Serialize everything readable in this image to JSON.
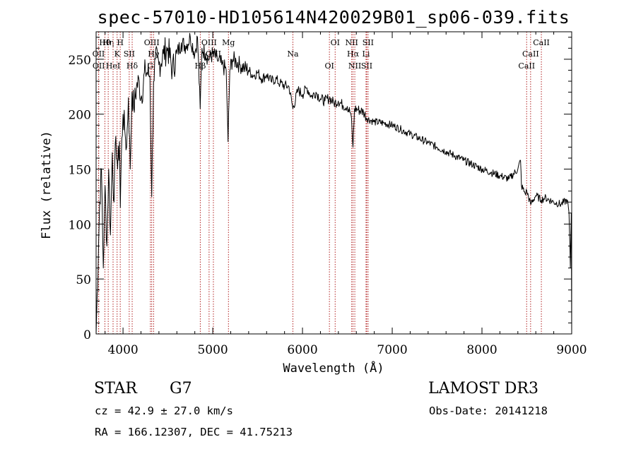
{
  "chart_data": {
    "type": "line",
    "title": "spec-57010-HD105614N420029B01_sp06-039.fits",
    "xlabel": "Wavelength (Å)",
    "ylabel": "Flux (relative)",
    "xlim": [
      3700,
      9000
    ],
    "ylim": [
      0,
      275
    ],
    "xticks": [
      4000,
      5000,
      6000,
      7000,
      8000,
      9000
    ],
    "yticks": [
      0,
      50,
      100,
      150,
      200,
      250
    ],
    "grid": false,
    "series": [
      {
        "name": "spectrum",
        "x": [
          3700,
          3740,
          3760,
          3780,
          3800,
          3820,
          3840,
          3860,
          3880,
          3900,
          3920,
          3940,
          3960,
          3970,
          3980,
          4000,
          4020,
          4040,
          4060,
          4080,
          4100,
          4120,
          4150,
          4180,
          4200,
          4250,
          4300,
          4320,
          4340,
          4360,
          4400,
          4450,
          4500,
          4550,
          4600,
          4650,
          4700,
          4750,
          4800,
          4830,
          4860,
          4880,
          4920,
          4960,
          5000,
          5050,
          5100,
          5150,
          5170,
          5190,
          5220,
          5260,
          5300,
          5350,
          5400,
          5450,
          5500,
          5550,
          5600,
          5650,
          5700,
          5750,
          5800,
          5850,
          5893,
          5950,
          6000,
          6050,
          6100,
          6150,
          6200,
          6250,
          6300,
          6350,
          6400,
          6450,
          6500,
          6540,
          6563,
          6580,
          6620,
          6680,
          6720,
          6800,
          6900,
          7000,
          7100,
          7200,
          7300,
          7400,
          7500,
          7600,
          7700,
          7800,
          7900,
          8000,
          8100,
          8200,
          8300,
          8400,
          8430,
          8440,
          8480,
          8500,
          8542,
          8600,
          8662,
          8700,
          8800,
          8880,
          8950,
          8970,
          8985,
          8995,
          9000
        ],
        "y": [
          0,
          120,
          150,
          60,
          135,
          80,
          150,
          90,
          165,
          120,
          180,
          150,
          175,
          115,
          160,
          200,
          185,
          170,
          215,
          150,
          220,
          205,
          225,
          230,
          215,
          240,
          235,
          125,
          230,
          250,
          245,
          255,
          260,
          240,
          255,
          265,
          262,
          270,
          255,
          270,
          205,
          260,
          255,
          250,
          255,
          250,
          245,
          240,
          175,
          240,
          250,
          248,
          245,
          242,
          240,
          235,
          238,
          232,
          236,
          230,
          232,
          228,
          226,
          225,
          205,
          222,
          218,
          224,
          216,
          220,
          214,
          212,
          215,
          210,
          212,
          208,
          207,
          200,
          170,
          205,
          204,
          202,
          196,
          193,
          192,
          190,
          186,
          182,
          178,
          174,
          170,
          166,
          162,
          158,
          154,
          150,
          147,
          144,
          141,
          150,
          158,
          135,
          128,
          130,
          118,
          126,
          122,
          124,
          120,
          118,
          122,
          110,
          60,
          110,
          0
        ]
      }
    ],
    "line_markers": [
      {
        "label": "Hθ",
        "wavelength": 3798
      },
      {
        "label": "OII",
        "wavelength": 3727
      },
      {
        "label": "OII",
        "wavelength": 3729
      },
      {
        "label": "Hη",
        "wavelength": 3835
      },
      {
        "label": "K",
        "wavelength": 3934
      },
      {
        "label": "HeI",
        "wavelength": 3889
      },
      {
        "label": "H",
        "wavelength": 3969
      },
      {
        "label": "SII",
        "wavelength": 4069
      },
      {
        "label": "Hδ",
        "wavelength": 4102
      },
      {
        "label": "OIII",
        "wavelength": 4320
      },
      {
        "label": "Hγ",
        "wavelength": 4341
      },
      {
        "label": "G",
        "wavelength": 4305
      },
      {
        "label": "OIII",
        "wavelength": 4959
      },
      {
        "label": "OIII",
        "wavelength": 5007
      },
      {
        "label": "Hβ",
        "wavelength": 4861
      },
      {
        "label": "Mg",
        "wavelength": 5175
      },
      {
        "label": "Na",
        "wavelength": 5893
      },
      {
        "label": "OI",
        "wavelength": 6300
      },
      {
        "label": "OI",
        "wavelength": 6364
      },
      {
        "label": "Hα",
        "wavelength": 6563
      },
      {
        "label": "SII",
        "wavelength": 6716
      },
      {
        "label": "NII",
        "wavelength": 6548
      },
      {
        "label": "Li",
        "wavelength": 6708
      },
      {
        "label": "NII",
        "wavelength": 6583
      },
      {
        "label": "SII",
        "wavelength": 6731
      },
      {
        "label": "CaII",
        "wavelength": 8542
      },
      {
        "label": "CaII",
        "wavelength": 8498
      },
      {
        "label": "CaII",
        "wavelength": 8662
      }
    ]
  },
  "info": {
    "object_class": "STAR",
    "subclass": "G7",
    "survey": "LAMOST DR3",
    "redshift": "cz = 42.9 ± 27.0 km/s",
    "obs_date": "Obs-Date: 20141218",
    "coords": "RA = 166.12307, DEC =  41.75213"
  }
}
